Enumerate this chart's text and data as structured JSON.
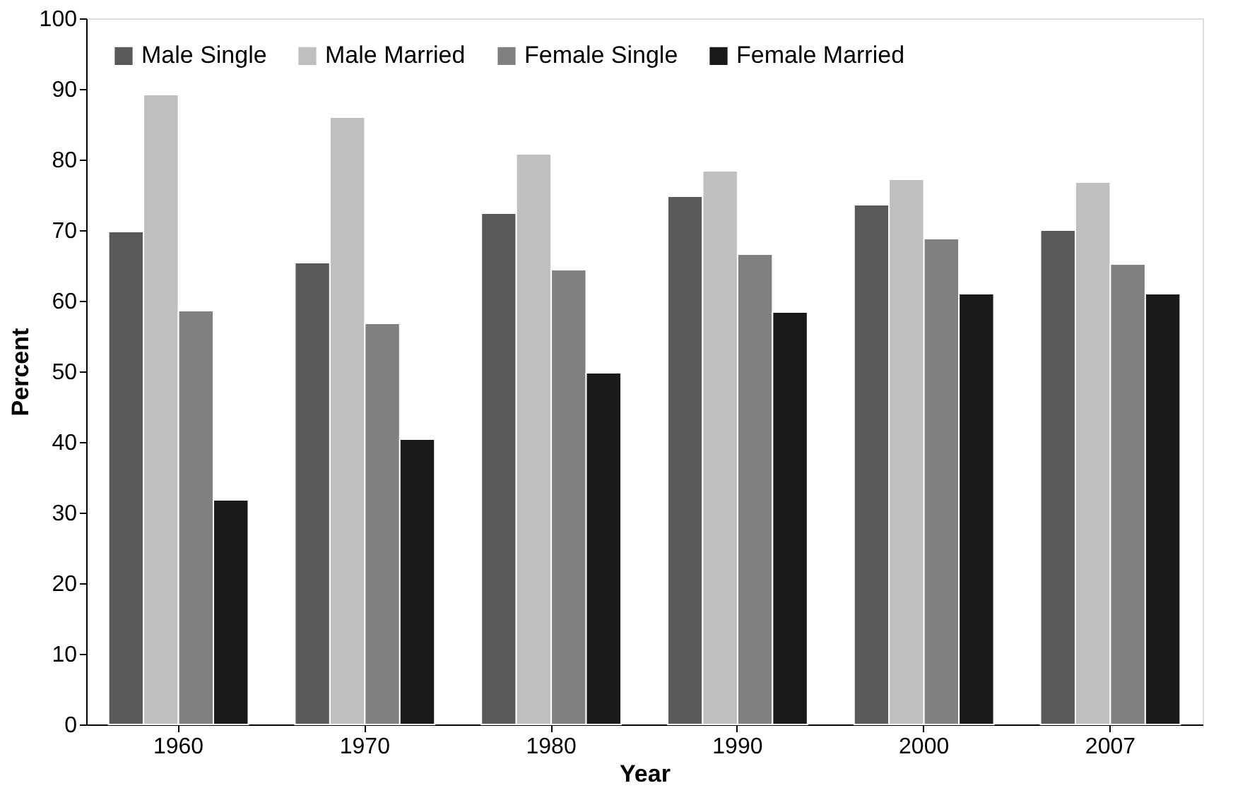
{
  "chart_data": {
    "type": "bar",
    "xlabel": "Year",
    "ylabel": "Percent",
    "categories": [
      "1960",
      "1970",
      "1980",
      "1990",
      "2000",
      "2007"
    ],
    "series": [
      {
        "name": "Male Single",
        "color": "#595959",
        "values": [
          69.8,
          65.4,
          72.4,
          74.8,
          73.6,
          70
        ]
      },
      {
        "name": "Male Married",
        "color": "#bfbfbf",
        "values": [
          89.2,
          86,
          80.8,
          78.4,
          77.2,
          76.8
        ]
      },
      {
        "name": "Female Single",
        "color": "#808080",
        "values": [
          58.6,
          56.8,
          64.4,
          66.6,
          68.8,
          65.2
        ]
      },
      {
        "name": "Female Married",
        "color": "#1a1a1a",
        "values": [
          31.8,
          40.4,
          49.8,
          58.4,
          61,
          61
        ]
      }
    ],
    "ylim": [
      0,
      100
    ],
    "yticks": [
      0,
      10,
      20,
      30,
      40,
      50,
      60,
      70,
      80,
      90,
      100
    ],
    "grid": false,
    "legend": "top left"
  }
}
